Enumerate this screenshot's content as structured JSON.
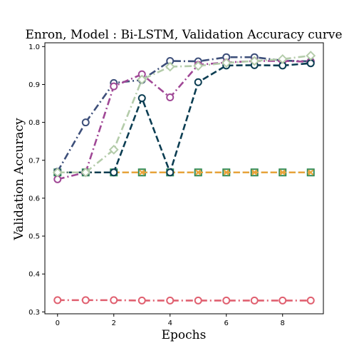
{
  "chart_data": {
    "type": "line",
    "title": "Enron, Model : Bi-LSTM, Validation Accuracy curve",
    "xlabel": "Epochs",
    "ylabel": "Validation Accuracy",
    "xlim": [
      -0.45,
      9.45
    ],
    "ylim": [
      0.295,
      1.01
    ],
    "xticks": [
      0,
      2,
      4,
      6,
      8
    ],
    "yticks": [
      0.3,
      0.4,
      0.5,
      0.6,
      0.7,
      0.8,
      0.9,
      1.0
    ],
    "ytick_labels": [
      "0.3",
      "0.4",
      "0.5",
      "0.6",
      "0.7",
      "0.8",
      "0.9",
      "1.0"
    ],
    "grid": false,
    "x": [
      0,
      1,
      2,
      3,
      4,
      5,
      6,
      7,
      8,
      9
    ],
    "series": [
      {
        "color": "#e06070",
        "dash": "dashdot",
        "marker": "circle",
        "values": [
          0.331,
          0.331,
          0.331,
          0.33,
          0.33,
          0.33,
          0.33,
          0.33,
          0.33,
          0.33
        ]
      },
      {
        "color": "#2e8b57",
        "dash": "dashed",
        "marker": "square",
        "values": [
          0.668,
          0.668,
          0.668,
          0.668,
          0.668,
          0.668,
          0.668,
          0.668,
          0.668,
          0.668
        ]
      },
      {
        "color": "#e8a33a",
        "dash": "dashed",
        "marker": "x",
        "values": [
          0.668,
          0.668,
          0.668,
          0.668,
          0.668,
          0.668,
          0.668,
          0.668,
          0.668,
          0.668
        ]
      },
      {
        "color": "#3d4f7a",
        "dash": "dashdot",
        "marker": "circle",
        "values": [
          0.67,
          0.8,
          0.904,
          0.912,
          0.962,
          0.961,
          0.972,
          0.972,
          0.963,
          0.961
        ]
      },
      {
        "color": "#a04896",
        "dash": "dashdot",
        "marker": "circle",
        "values": [
          0.65,
          0.668,
          0.895,
          0.927,
          0.866,
          0.952,
          0.958,
          0.962,
          0.962,
          0.96
        ]
      },
      {
        "color": "#0b3d52",
        "dash": "dashed",
        "marker": "circle",
        "values": [
          0.668,
          0.668,
          0.668,
          0.864,
          0.668,
          0.906,
          0.95,
          0.951,
          0.95,
          0.956
        ]
      },
      {
        "color": "#b4ccaa",
        "dash": "dashdot",
        "marker": "diamond",
        "values": [
          0.668,
          0.668,
          0.728,
          0.913,
          0.947,
          0.949,
          0.957,
          0.962,
          0.967,
          0.976
        ]
      }
    ]
  }
}
